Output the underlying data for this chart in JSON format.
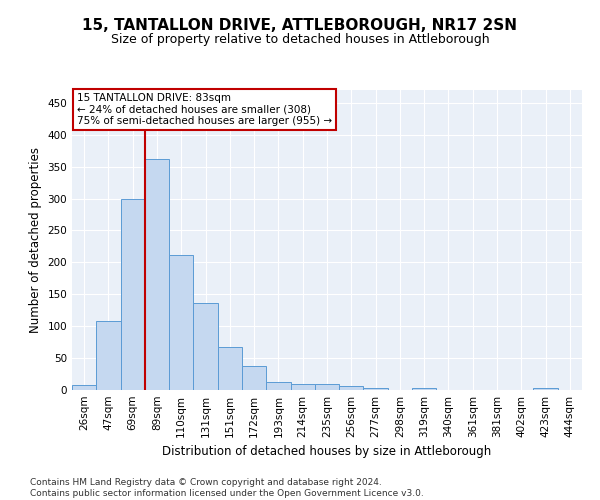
{
  "title1": "15, TANTALLON DRIVE, ATTLEBOROUGH, NR17 2SN",
  "title2": "Size of property relative to detached houses in Attleborough",
  "xlabel": "Distribution of detached houses by size in Attleborough",
  "ylabel": "Number of detached properties",
  "categories": [
    "26sqm",
    "47sqm",
    "69sqm",
    "89sqm",
    "110sqm",
    "131sqm",
    "151sqm",
    "172sqm",
    "193sqm",
    "214sqm",
    "235sqm",
    "256sqm",
    "277sqm",
    "298sqm",
    "319sqm",
    "340sqm",
    "361sqm",
    "381sqm",
    "402sqm",
    "423sqm",
    "444sqm"
  ],
  "values": [
    8,
    108,
    300,
    362,
    212,
    136,
    68,
    38,
    13,
    10,
    9,
    6,
    3,
    0,
    3,
    0,
    0,
    0,
    0,
    3,
    0
  ],
  "bar_color": "#c5d8f0",
  "bar_edge_color": "#5b9bd5",
  "vline_color": "#c00000",
  "vline_pos": 2.5,
  "annotation_text": "15 TANTALLON DRIVE: 83sqm\n← 24% of detached houses are smaller (308)\n75% of semi-detached houses are larger (955) →",
  "annotation_box_color": "#ffffff",
  "annotation_box_edge_color": "#c00000",
  "ylim": [
    0,
    470
  ],
  "background_color": "#eaf0f8",
  "footer": "Contains HM Land Registry data © Crown copyright and database right 2024.\nContains public sector information licensed under the Open Government Licence v3.0.",
  "title1_fontsize": 11,
  "title2_fontsize": 9,
  "xlabel_fontsize": 8.5,
  "ylabel_fontsize": 8.5,
  "tick_fontsize": 7.5,
  "ann_fontsize": 7.5,
  "footer_fontsize": 6.5
}
